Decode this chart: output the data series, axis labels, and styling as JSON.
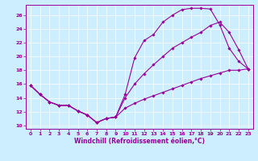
{
  "xlabel": "Windchill (Refroidissement éolien,°C)",
  "bg_color": "#cceeff",
  "line_color": "#990099",
  "grid_color": "#ffffff",
  "xlim": [
    -0.5,
    23.5
  ],
  "ylim": [
    9.5,
    27.5
  ],
  "yticks": [
    10,
    12,
    14,
    16,
    18,
    20,
    22,
    24,
    26
  ],
  "xticks": [
    0,
    1,
    2,
    3,
    4,
    5,
    6,
    7,
    8,
    9,
    10,
    11,
    12,
    13,
    14,
    15,
    16,
    17,
    18,
    19,
    20,
    21,
    22,
    23
  ],
  "series": [
    {
      "x": [
        0,
        1,
        2,
        3,
        4,
        5,
        6,
        7,
        8,
        9,
        10,
        11,
        12,
        13,
        14,
        15,
        16,
        17,
        18,
        19,
        20,
        21,
        22,
        23
      ],
      "y": [
        15.8,
        14.5,
        13.4,
        12.9,
        12.9,
        12.1,
        11.5,
        10.4,
        11.0,
        11.2,
        14.5,
        19.8,
        22.3,
        23.2,
        25.0,
        26.0,
        26.8,
        27.0,
        27.0,
        26.9,
        24.6,
        21.2,
        19.3,
        18.2
      ]
    },
    {
      "x": [
        0,
        1,
        2,
        3,
        4,
        5,
        6,
        7,
        8,
        9,
        10,
        11,
        12,
        13,
        14,
        15,
        16,
        17,
        18,
        19,
        20,
        21,
        22,
        23
      ],
      "y": [
        15.8,
        14.5,
        13.4,
        12.9,
        12.9,
        12.1,
        11.5,
        10.4,
        11.0,
        11.2,
        14.0,
        16.0,
        17.5,
        18.8,
        20.0,
        21.2,
        22.0,
        22.8,
        23.5,
        24.5,
        25.0,
        23.5,
        21.0,
        18.2
      ]
    },
    {
      "x": [
        0,
        1,
        2,
        3,
        4,
        5,
        6,
        7,
        8,
        9,
        10,
        11,
        12,
        13,
        14,
        15,
        16,
        17,
        18,
        19,
        20,
        21,
        22,
        23
      ],
      "y": [
        15.8,
        14.5,
        13.4,
        12.9,
        12.9,
        12.1,
        11.5,
        10.4,
        11.0,
        11.2,
        12.5,
        13.2,
        13.8,
        14.3,
        14.8,
        15.3,
        15.8,
        16.3,
        16.8,
        17.2,
        17.6,
        18.0,
        18.0,
        18.2
      ]
    }
  ]
}
